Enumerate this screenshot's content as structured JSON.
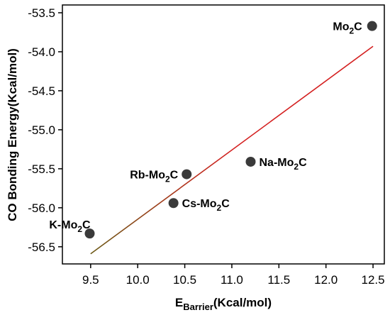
{
  "chart_data": {
    "type": "scatter",
    "title": "",
    "xlabel": {
      "main": "E",
      "sub": "Barrier",
      "rest": "(Kcal/mol)"
    },
    "ylabel": "CO Bonding Energy(Kcal/mol)",
    "xlim": [
      9.2,
      12.62
    ],
    "ylim": [
      -56.72,
      -53.4
    ],
    "xticks": [
      9.5,
      10.0,
      10.5,
      11.0,
      11.5,
      12.0,
      12.5
    ],
    "yticks": [
      -53.5,
      -54.0,
      -54.5,
      -55.0,
      -55.5,
      -56.0,
      -56.5
    ],
    "xtick_labels": [
      "9.5",
      "10.0",
      "10.5",
      "11.0",
      "11.5",
      "12.0",
      "12.5"
    ],
    "ytick_labels": [
      "-53.5",
      "-54.0",
      "-54.5",
      "-55.0",
      "-55.5",
      "-56.0",
      "-56.5"
    ],
    "grid": false,
    "points": [
      {
        "pre": "K-Mo",
        "sub": "2",
        "post": "C",
        "x": 9.49,
        "y": -56.33
      },
      {
        "pre": "Cs-Mo",
        "sub": "2",
        "post": "C",
        "x": 10.38,
        "y": -55.94
      },
      {
        "pre": "Rb-Mo",
        "sub": "2",
        "post": "C",
        "x": 10.52,
        "y": -55.57
      },
      {
        "pre": "Na-Mo",
        "sub": "2",
        "post": "C",
        "x": 11.2,
        "y": -55.41
      },
      {
        "pre": "Mo",
        "sub": "2",
        "post": "C",
        "x": 12.49,
        "y": -53.67
      }
    ],
    "fit_line": {
      "x": [
        9.5,
        12.5
      ],
      "y": [
        -56.59,
        -53.93
      ]
    },
    "colors": {
      "marker": "#3a3a3a",
      "fit_line": "#d42020",
      "fit_line_lower": "#6b5a16"
    }
  }
}
